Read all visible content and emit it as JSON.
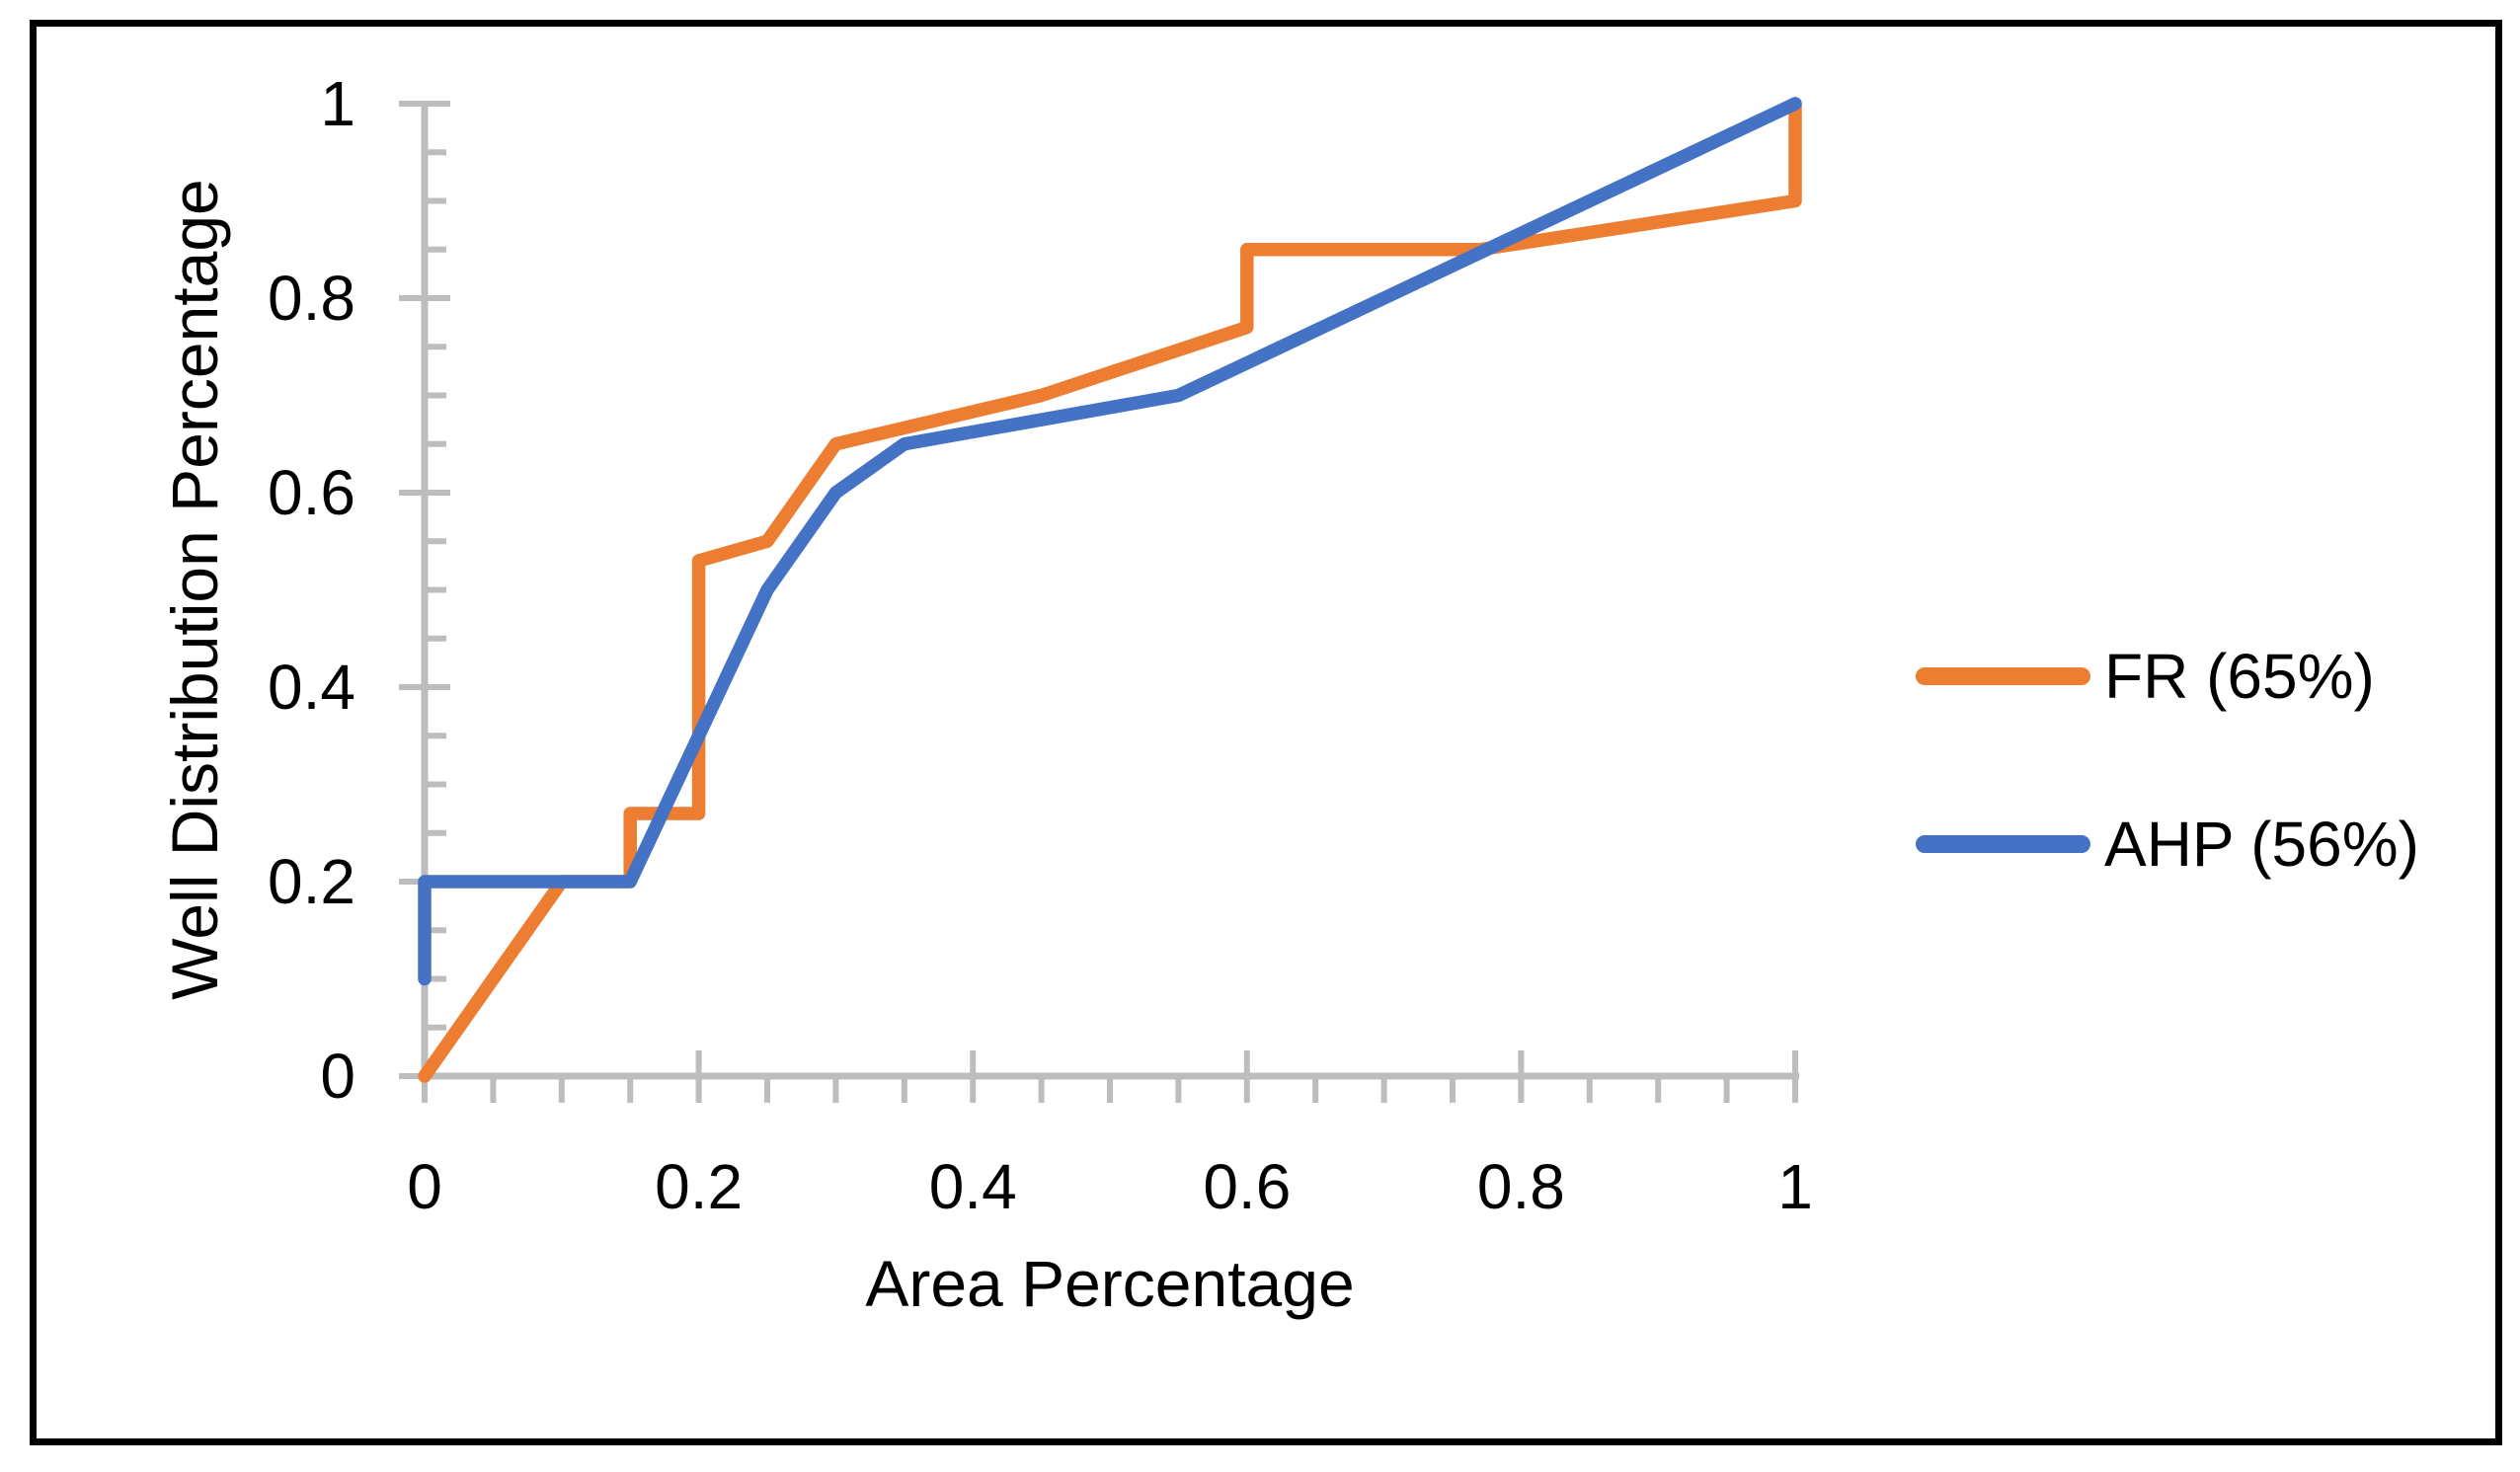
{
  "figure": {
    "background": "#ffffff",
    "border_color": "#000000"
  },
  "chart_data": {
    "type": "line",
    "title": "",
    "xlabel": "Area Percentage",
    "ylabel": "Well Distribution Percentage",
    "xlim": [
      0,
      1
    ],
    "ylim": [
      0,
      1
    ],
    "grid": false,
    "legend_position": "right",
    "axis_color": "#BDBDBD",
    "text_color": "#000000",
    "x_ticks": [
      0,
      0.2,
      0.4,
      0.6,
      0.8,
      1
    ],
    "x_tick_labels": [
      "0",
      "0.2",
      "0.4",
      "0.6",
      "0.8",
      "1"
    ],
    "y_ticks": [
      0,
      0.2,
      0.4,
      0.6,
      0.8,
      1
    ],
    "y_tick_labels": [
      "0",
      "0.2",
      "0.4",
      "0.6",
      "0.8",
      "1"
    ],
    "minor_tick_step": 0.05,
    "series": [
      {
        "name": "FR (65%)",
        "color": "#ED7D31",
        "points": [
          [
            0,
            0
          ],
          [
            0.1,
            0.2
          ],
          [
            0.15,
            0.2
          ],
          [
            0.15,
            0.27
          ],
          [
            0.2,
            0.27
          ],
          [
            0.2,
            0.53
          ],
          [
            0.25,
            0.55
          ],
          [
            0.3,
            0.65
          ],
          [
            0.45,
            0.7
          ],
          [
            0.6,
            0.77
          ],
          [
            0.6,
            0.85
          ],
          [
            0.77,
            0.85
          ],
          [
            1,
            0.9
          ],
          [
            1,
            1
          ]
        ]
      },
      {
        "name": "AHP (56%)",
        "color": "#4472C4",
        "points": [
          [
            0,
            0.1
          ],
          [
            0,
            0.2
          ],
          [
            0.15,
            0.2
          ],
          [
            0.25,
            0.5
          ],
          [
            0.3,
            0.6
          ],
          [
            0.35,
            0.65
          ],
          [
            0.55,
            0.7
          ],
          [
            1,
            1
          ]
        ]
      }
    ]
  },
  "legend": {
    "items": [
      {
        "label": "FR (65%)",
        "color": "#ED7D31"
      },
      {
        "label": "AHP (56%)",
        "color": "#4472C4"
      }
    ]
  }
}
